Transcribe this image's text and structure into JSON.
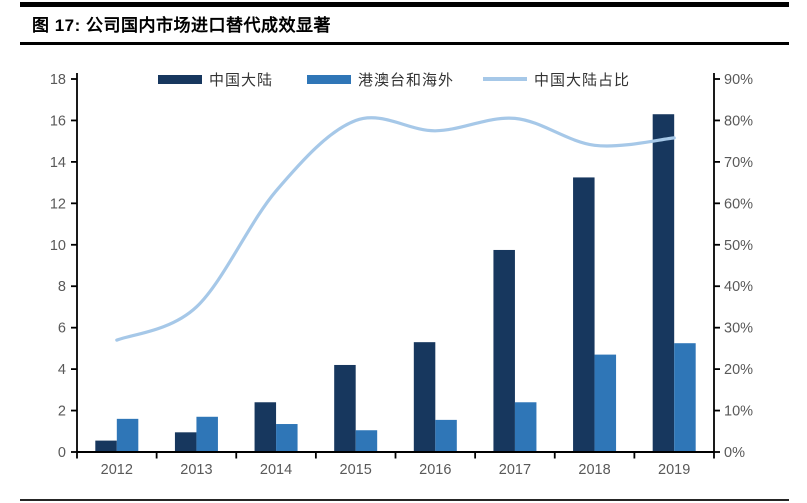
{
  "page": {
    "title": "图 17: 公司国内市场进口替代成效显著"
  },
  "chart_data": {
    "type": "bar",
    "subtype": "combo-bar-line",
    "title": "公司国内市场进口替代成效显著",
    "categories": [
      "2012",
      "2013",
      "2014",
      "2015",
      "2016",
      "2017",
      "2018",
      "2019"
    ],
    "series": [
      {
        "name": "中国大陆",
        "type": "bar",
        "axis": "left",
        "color": "#17375E",
        "values": [
          0.55,
          0.95,
          2.4,
          4.2,
          5.3,
          9.75,
          13.25,
          16.3
        ]
      },
      {
        "name": "港澳台和海外",
        "type": "bar",
        "axis": "left",
        "color": "#2F76B7",
        "values": [
          1.6,
          1.7,
          1.35,
          1.05,
          1.55,
          2.4,
          4.7,
          5.25
        ]
      },
      {
        "name": "中国大陆占比",
        "type": "line",
        "axis": "right",
        "color": "#A6C8E8",
        "values": [
          27,
          35,
          63,
          80,
          77.5,
          80.5,
          74,
          75.8
        ]
      }
    ],
    "left_axis": {
      "min": 0,
      "max": 18,
      "step": 2,
      "tick_labels": [
        "0",
        "2",
        "4",
        "6",
        "8",
        "10",
        "12",
        "14",
        "16",
        "18"
      ]
    },
    "right_axis": {
      "min": 0,
      "max": 90,
      "step": 10,
      "tick_labels": [
        "0%",
        "10%",
        "20%",
        "30%",
        "40%",
        "50%",
        "60%",
        "70%",
        "80%",
        "90%"
      ]
    },
    "legend_position": "top",
    "grid": false
  },
  "colors": {
    "axis_line": "#000000",
    "tick_label": "#595959",
    "title_text": "#000000",
    "legend_text": "#333333",
    "background": "#FFFFFF"
  }
}
